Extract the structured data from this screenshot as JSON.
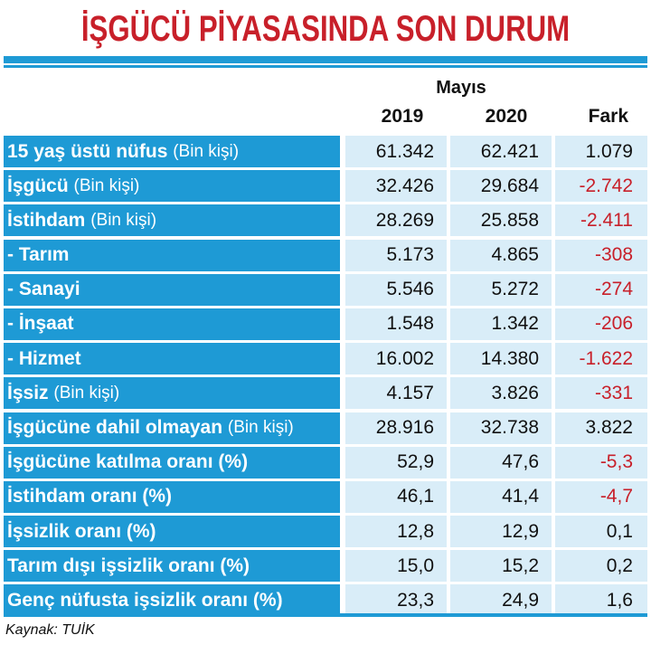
{
  "title": "İŞGÜCÜ PİYASASINDA SON DURUM",
  "header": {
    "month": "Mayıs",
    "col_2019": "2019",
    "col_2020": "2020",
    "col_diff": "Fark"
  },
  "rows": [
    {
      "label": "15 yaş üstü nüfus",
      "unit": "(Bin kişi)",
      "v2019": "61.342",
      "v2020": "62.421",
      "diff": "1.079"
    },
    {
      "label": "İşgücü",
      "unit": "(Bin kişi)",
      "v2019": "32.426",
      "v2020": "29.684",
      "diff": "-2.742"
    },
    {
      "label": "İstihdam",
      "unit": "(Bin kişi)",
      "v2019": "28.269",
      "v2020": "25.858",
      "diff": "-2.411"
    },
    {
      "label": "- Tarım",
      "unit": "",
      "v2019": "5.173",
      "v2020": "4.865",
      "diff": "-308"
    },
    {
      "label": "- Sanayi",
      "unit": "",
      "v2019": "5.546",
      "v2020": "5.272",
      "diff": "-274"
    },
    {
      "label": "- İnşaat",
      "unit": "",
      "v2019": "1.548",
      "v2020": "1.342",
      "diff": "-206"
    },
    {
      "label": "- Hizmet",
      "unit": "",
      "v2019": "16.002",
      "v2020": "14.380",
      "diff": "-1.622"
    },
    {
      "label": "İşsiz",
      "unit": "(Bin kişi)",
      "v2019": "4.157",
      "v2020": "3.826",
      "diff": "-331"
    },
    {
      "label": "İşgücüne dahil olmayan",
      "unit": "(Bin kişi)",
      "v2019": "28.916",
      "v2020": "32.738",
      "diff": "3.822"
    },
    {
      "label": "İşgücüne katılma oranı (%)",
      "unit": "",
      "v2019": "52,9",
      "v2020": "47,6",
      "diff": "-5,3"
    },
    {
      "label": "İstihdam oranı (%)",
      "unit": "",
      "v2019": "46,1",
      "v2020": "41,4",
      "diff": "-4,7"
    },
    {
      "label": "İşsizlik oranı (%)",
      "unit": "",
      "v2019": "12,8",
      "v2020": "12,9",
      "diff": "0,1"
    },
    {
      "label": "Tarım dışı işsizlik oranı (%)",
      "unit": "",
      "v2019": "15,0",
      "v2020": "15,2",
      "diff": "0,2"
    },
    {
      "label": "Genç nüfusta işsizlik oranı (%)",
      "unit": "",
      "v2019": "23,3",
      "v2020": "24,9",
      "diff": "1,6"
    }
  ],
  "source": "Kaynak: TUİK",
  "colors": {
    "accent_blue": "#1e9ad5",
    "cell_bg": "#d9edf8",
    "title_red": "#c8202a",
    "negative_red": "#c8202a"
  }
}
